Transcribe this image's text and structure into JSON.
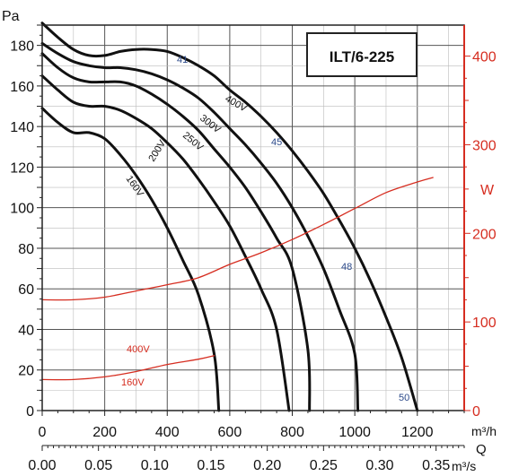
{
  "chart_data": {
    "type": "line",
    "title": "ILT/6-225",
    "left_axis": {
      "label": "Pa",
      "range": [
        0,
        190
      ],
      "ticks": [
        0,
        20,
        40,
        60,
        80,
        100,
        120,
        140,
        160,
        180
      ]
    },
    "right_axis": {
      "label": "W",
      "range": [
        0,
        435
      ],
      "ticks": [
        0,
        100,
        200,
        300,
        400
      ],
      "color": "#d62d20"
    },
    "x_axis": {
      "label": "m³/h",
      "range": [
        0,
        1350
      ],
      "ticks": [
        0,
        200,
        400,
        600,
        800,
        1000,
        1200
      ]
    },
    "x2_axis": {
      "symbol": "Q",
      "label": "m³/s",
      "range": [
        0,
        0.375
      ],
      "ticks": [
        "0.00",
        "0.05",
        "0.10",
        "0.15",
        "0.20",
        "0.25",
        "0.30",
        "0.35"
      ]
    },
    "grid": true,
    "series": [
      {
        "name": "400V",
        "axis": "left",
        "color": "#111111",
        "points": [
          [
            0,
            191
          ],
          [
            50,
            184
          ],
          [
            100,
            178
          ],
          [
            150,
            175
          ],
          [
            200,
            175
          ],
          [
            250,
            177
          ],
          [
            300,
            178
          ],
          [
            350,
            178
          ],
          [
            400,
            177
          ],
          [
            450,
            174
          ],
          [
            500,
            170
          ],
          [
            550,
            165
          ],
          [
            600,
            158
          ],
          [
            650,
            152
          ],
          [
            700,
            145
          ],
          [
            750,
            137
          ],
          [
            800,
            128
          ],
          [
            850,
            118
          ],
          [
            900,
            107
          ],
          [
            950,
            94
          ],
          [
            1000,
            80
          ],
          [
            1050,
            64
          ],
          [
            1100,
            46
          ],
          [
            1150,
            26
          ],
          [
            1200,
            0
          ]
        ]
      },
      {
        "name": "300V",
        "axis": "left",
        "color": "#111111",
        "points": [
          [
            0,
            181
          ],
          [
            50,
            176
          ],
          [
            100,
            172
          ],
          [
            150,
            170
          ],
          [
            200,
            169
          ],
          [
            250,
            169
          ],
          [
            300,
            168
          ],
          [
            350,
            166
          ],
          [
            400,
            163
          ],
          [
            450,
            159
          ],
          [
            500,
            154
          ],
          [
            550,
            147
          ],
          [
            600,
            139
          ],
          [
            650,
            131
          ],
          [
            700,
            122
          ],
          [
            750,
            112
          ],
          [
            800,
            100
          ],
          [
            850,
            86
          ],
          [
            900,
            70
          ],
          [
            950,
            50
          ],
          [
            1000,
            28
          ],
          [
            1010,
            0
          ]
        ]
      },
      {
        "name": "250V",
        "axis": "left",
        "color": "#111111",
        "points": [
          [
            0,
            176
          ],
          [
            50,
            169
          ],
          [
            100,
            164
          ],
          [
            150,
            162
          ],
          [
            200,
            162
          ],
          [
            250,
            162
          ],
          [
            300,
            160
          ],
          [
            350,
            156
          ],
          [
            400,
            151
          ],
          [
            450,
            145
          ],
          [
            500,
            138
          ],
          [
            550,
            129
          ],
          [
            600,
            120
          ],
          [
            650,
            110
          ],
          [
            700,
            98
          ],
          [
            750,
            85
          ],
          [
            800,
            70
          ],
          [
            850,
            30
          ],
          [
            855,
            0
          ]
        ]
      },
      {
        "name": "200V",
        "axis": "left",
        "color": "#111111",
        "points": [
          [
            0,
            165
          ],
          [
            50,
            158
          ],
          [
            100,
            152
          ],
          [
            150,
            150
          ],
          [
            200,
            150
          ],
          [
            250,
            148
          ],
          [
            300,
            144
          ],
          [
            350,
            139
          ],
          [
            400,
            132
          ],
          [
            450,
            124
          ],
          [
            500,
            114
          ],
          [
            550,
            103
          ],
          [
            600,
            91
          ],
          [
            650,
            76
          ],
          [
            700,
            60
          ],
          [
            750,
            40
          ],
          [
            790,
            0
          ]
        ]
      },
      {
        "name": "160V",
        "axis": "left",
        "color": "#111111",
        "points": [
          [
            0,
            149
          ],
          [
            50,
            142
          ],
          [
            100,
            137
          ],
          [
            150,
            137
          ],
          [
            200,
            134
          ],
          [
            250,
            126
          ],
          [
            300,
            116
          ],
          [
            350,
            104
          ],
          [
            400,
            90
          ],
          [
            450,
            74
          ],
          [
            500,
            57
          ],
          [
            550,
            28
          ],
          [
            565,
            0
          ]
        ]
      },
      {
        "name": "400V",
        "axis": "right",
        "color": "#d62d20",
        "points": [
          [
            0,
            125
          ],
          [
            100,
            125
          ],
          [
            200,
            128
          ],
          [
            300,
            135
          ],
          [
            400,
            142
          ],
          [
            500,
            150
          ],
          [
            600,
            165
          ],
          [
            700,
            178
          ],
          [
            800,
            193
          ],
          [
            900,
            210
          ],
          [
            1000,
            228
          ],
          [
            1100,
            246
          ],
          [
            1200,
            258
          ],
          [
            1250,
            263
          ]
        ]
      },
      {
        "name": "160V",
        "axis": "right",
        "color": "#d62d20",
        "points": [
          [
            0,
            35
          ],
          [
            100,
            35
          ],
          [
            200,
            38
          ],
          [
            300,
            44
          ],
          [
            400,
            52
          ],
          [
            500,
            58
          ],
          [
            550,
            62
          ]
        ]
      }
    ],
    "annotations": [
      "41",
      "45",
      "48",
      "50"
    ]
  }
}
